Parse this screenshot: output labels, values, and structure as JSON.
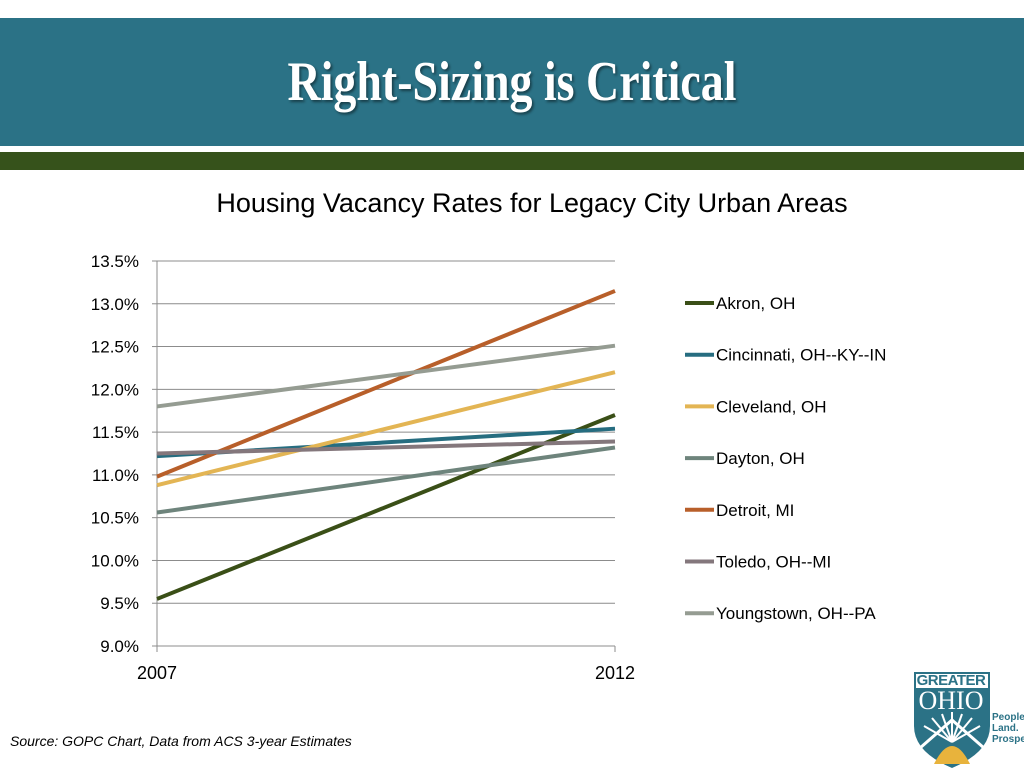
{
  "header": {
    "title": "Right-Sizing is Critical"
  },
  "source_note": "Source: GOPC Chart, Data from ACS 3-year Estimates",
  "logo": {
    "line1": "GREATER",
    "line2": "OHIO",
    "tagline": [
      "People.",
      "Land.",
      "Prosper"
    ]
  },
  "colors": {
    "banner": "#2b7286",
    "rule": "#36521b"
  },
  "chart_data": {
    "type": "line",
    "title": "Housing Vacancy Rates for Legacy City Urban Areas",
    "x": [
      "2007",
      "2012"
    ],
    "ylim": [
      9.0,
      13.5
    ],
    "y_ticks": [
      "9.0%",
      "9.5%",
      "10.0%",
      "10.5%",
      "11.0%",
      "11.5%",
      "12.0%",
      "12.5%",
      "13.0%",
      "13.5%"
    ],
    "grid": true,
    "legend_position": "right",
    "series": [
      {
        "name": "Akron, OH",
        "color": "#3a4f17",
        "values": [
          9.55,
          11.7
        ]
      },
      {
        "name": "Cincinnati, OH--KY--IN",
        "color": "#266d80",
        "values": [
          11.22,
          11.54
        ]
      },
      {
        "name": "Cleveland, OH",
        "color": "#e3b554",
        "values": [
          10.88,
          12.2
        ]
      },
      {
        "name": "Dayton, OH",
        "color": "#6e847c",
        "values": [
          10.56,
          11.32
        ]
      },
      {
        "name": "Detroit, MI",
        "color": "#b85f2a",
        "values": [
          10.98,
          13.15
        ]
      },
      {
        "name": "Toledo, OH--MI",
        "color": "#84777c",
        "values": [
          11.25,
          11.39
        ]
      },
      {
        "name": "Youngstown, OH--PA",
        "color": "#959c92",
        "values": [
          11.8,
          12.51
        ]
      }
    ]
  }
}
